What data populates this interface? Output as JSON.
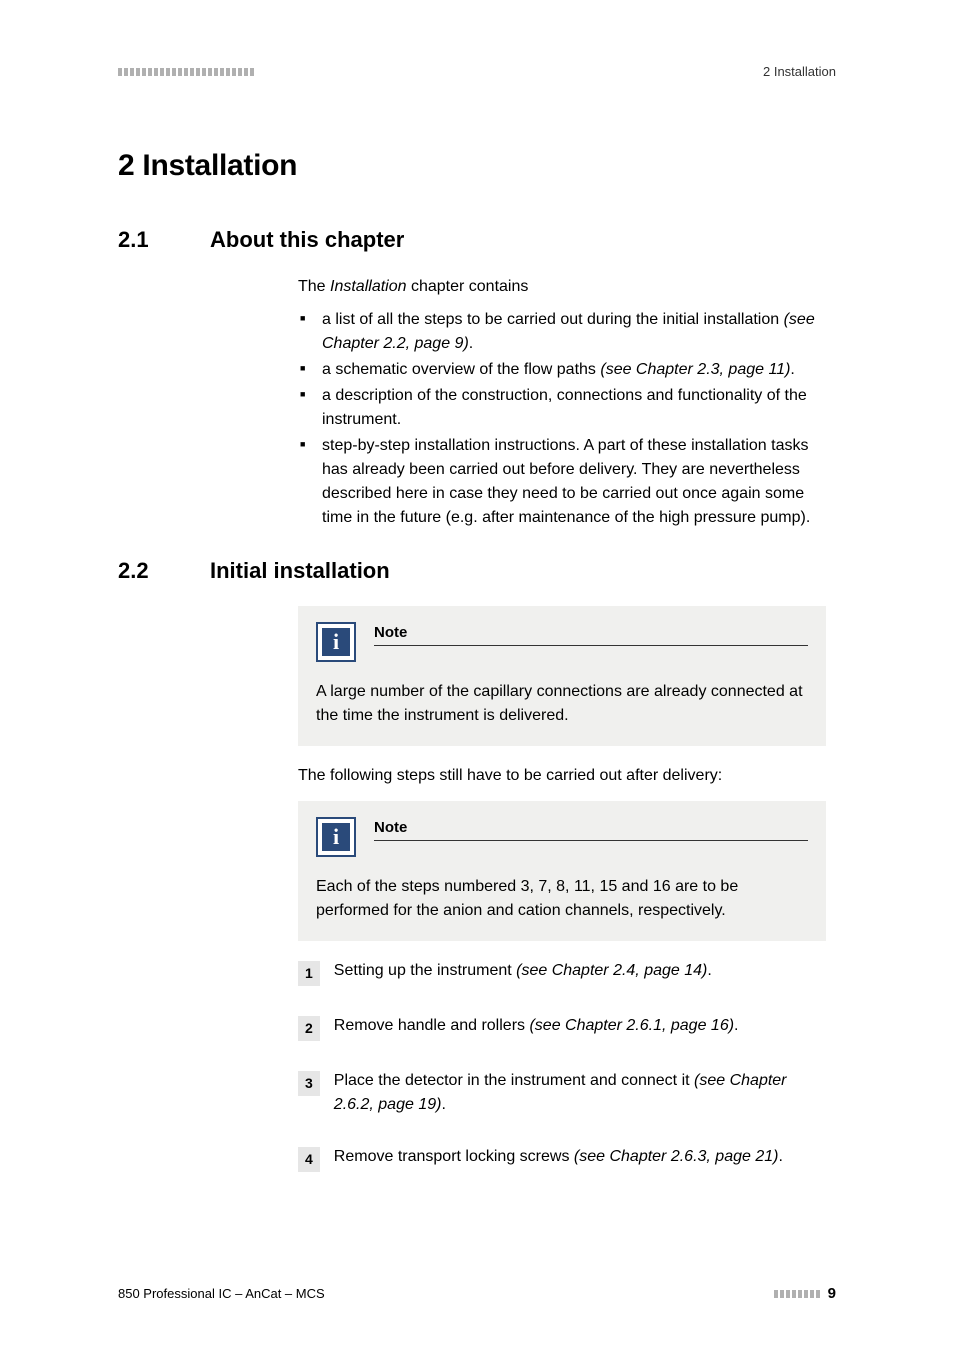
{
  "header": {
    "right": "2 Installation"
  },
  "h1": "2   Installation",
  "s1": {
    "num": "2.1",
    "title": "About this chapter",
    "intro_a": "The ",
    "intro_i": "Installation",
    "intro_b": " chapter contains",
    "bullets": {
      "b1a": "a list of all the steps to be carried out during the initial installation ",
      "b1i": "(see Chapter 2.2, page 9)",
      "b1b": ".",
      "b2a": "a schematic overview of the flow paths ",
      "b2i": "(see Chapter 2.3, page 11)",
      "b2b": ".",
      "b3": "a description of the construction, connections and functionality of the instrument.",
      "b4": "step-by-step installation instructions. A part of these installation tasks has already been carried out before delivery. They are nevertheless described here in case they need to be carried out once again some time in the future (e.g. after maintenance of the high pressure pump)."
    }
  },
  "s2": {
    "num": "2.2",
    "title": "Initial installation",
    "note1": {
      "label": "Note",
      "body": "A large number of the capillary connections are already connected at the time the instrument is delivered."
    },
    "para": "The following steps still have to be carried out after delivery:",
    "note2": {
      "label": "Note",
      "body": "Each of the steps numbered 3, 7, 8, 11, 15 and 16 are to be performed for the anion and cation channels, respectively."
    },
    "steps": {
      "n1": "1",
      "s1a": "Setting up the instrument ",
      "s1i": "(see Chapter 2.4, page 14)",
      "s1b": ".",
      "n2": "2",
      "s2a": "Remove handle and rollers ",
      "s2i": "(see Chapter 2.6.1, page 16)",
      "s2b": ".",
      "n3": "3",
      "s3a": "Place the detector in the instrument and connect it ",
      "s3i": "(see Chapter 2.6.2, page 19)",
      "s3b": ".",
      "n4": "4",
      "s4a": "Remove transport locking screws ",
      "s4i": "(see Chapter 2.6.3, page 21)",
      "s4b": "."
    }
  },
  "footer": {
    "left": "850 Professional IC – AnCat – MCS",
    "page": "9"
  },
  "style": {
    "header_bar_count": 23,
    "footer_bar_count": 8
  }
}
